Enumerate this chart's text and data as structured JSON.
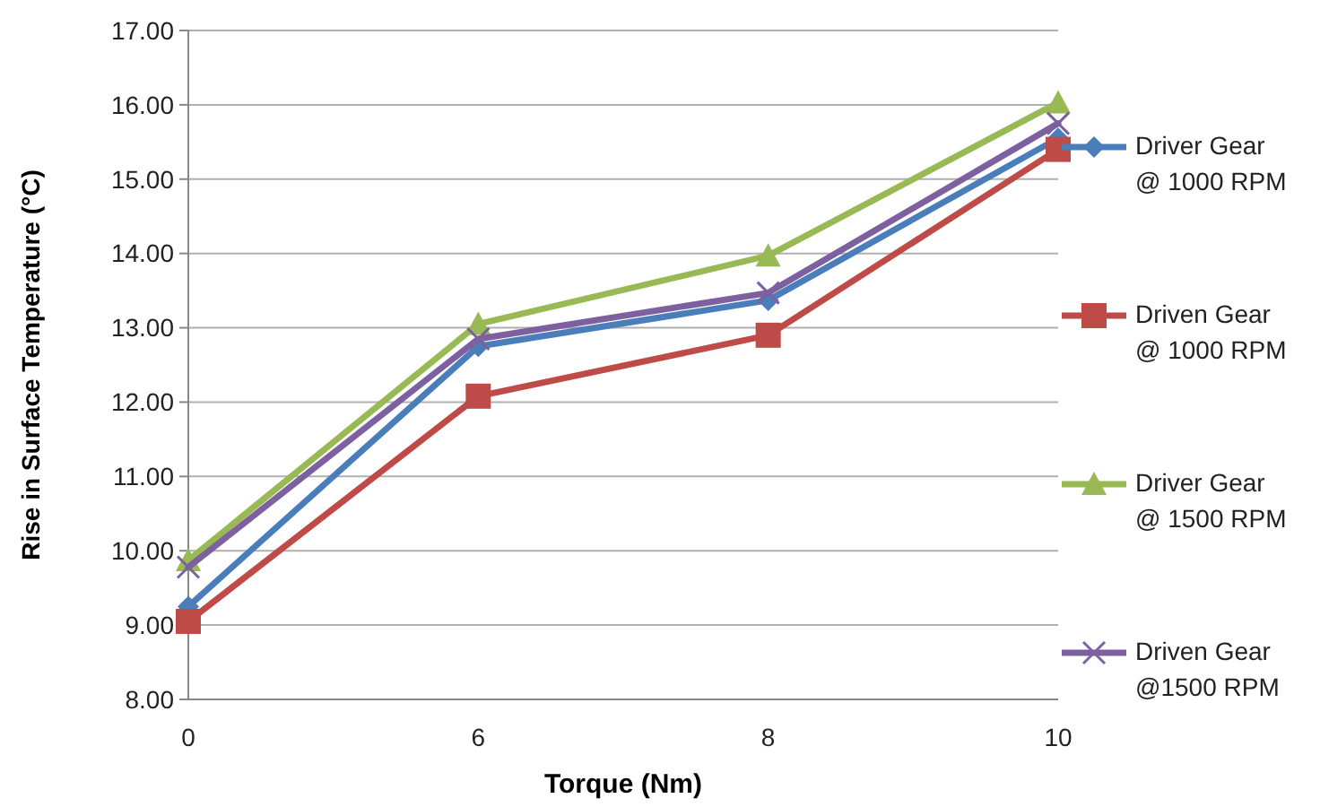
{
  "chart_data": {
    "type": "line",
    "xlabel": "Torque (Nm)",
    "ylabel": "Rise in Surface Temperature (°C)",
    "categories": [
      "0",
      "6",
      "8",
      "10"
    ],
    "ylim": [
      8,
      17
    ],
    "yticks": [
      {
        "value": 8,
        "label": "8.00"
      },
      {
        "value": 9,
        "label": "9.00"
      },
      {
        "value": 10,
        "label": "10.00"
      },
      {
        "value": 11,
        "label": "11.00"
      },
      {
        "value": 12,
        "label": "12.00"
      },
      {
        "value": 13,
        "label": "13.00"
      },
      {
        "value": 14,
        "label": "14.00"
      },
      {
        "value": 15,
        "label": "15.00"
      },
      {
        "value": 16,
        "label": "16.00"
      },
      {
        "value": 17,
        "label": "17.00"
      }
    ],
    "grid": "y",
    "legend": "right",
    "series": [
      {
        "name": "Driver Gear @ 1000 RPM",
        "color": "#4a7ebb",
        "marker": "diamond",
        "values": [
          9.25,
          12.75,
          13.37,
          15.55
        ]
      },
      {
        "name": "Driven Gear @ 1000 RPM",
        "color": "#be4b48",
        "marker": "square",
        "values": [
          9.05,
          12.08,
          12.9,
          15.4
        ]
      },
      {
        "name": "Driver Gear @ 1500 RPM",
        "color": "#98b954",
        "marker": "triangle",
        "values": [
          9.87,
          13.05,
          13.97,
          16.03
        ]
      },
      {
        "name": "Driven Gear @1500 RPM",
        "color": "#7d60a0",
        "marker": "cross",
        "values": [
          9.78,
          12.85,
          13.47,
          15.75
        ]
      }
    ]
  }
}
